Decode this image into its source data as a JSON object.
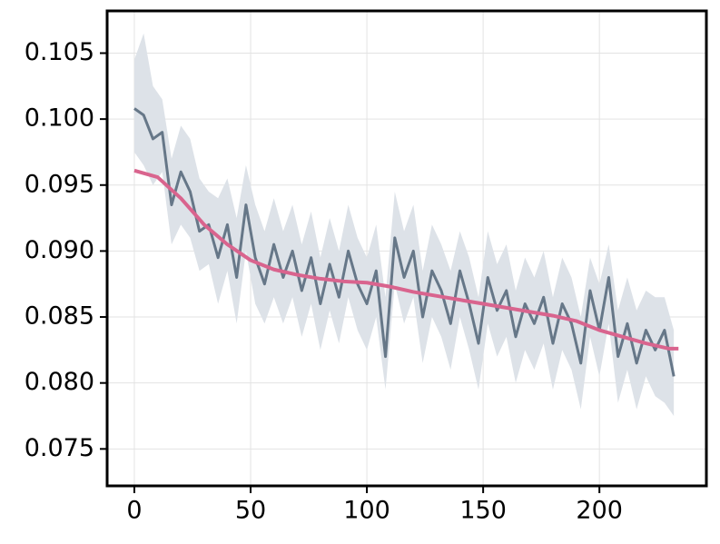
{
  "chart_data": {
    "type": "line",
    "xlim": [
      -11.7,
      246
    ],
    "ylim": [
      0.0722,
      0.1082
    ],
    "xticks": [
      0,
      50,
      100,
      150,
      200
    ],
    "yticks": [
      0.075,
      {
        "value": 0.08,
        "label": "0.080"
      },
      0.085,
      {
        "value": 0.09,
        "label": "0.090"
      },
      0.095,
      {
        "value": 0.1,
        "label": "0.100"
      },
      0.105
    ],
    "grid": true,
    "series": [
      {
        "color": "#667788",
        "band_color": "#dde2e8",
        "x": [
          0,
          4,
          8,
          12,
          16,
          20,
          24,
          28,
          32,
          36,
          40,
          44,
          48,
          52,
          56,
          60,
          64,
          68,
          72,
          76,
          80,
          84,
          88,
          92,
          96,
          100,
          104,
          108,
          112,
          116,
          120,
          124,
          128,
          132,
          136,
          140,
          144,
          148,
          152,
          156,
          160,
          164,
          168,
          172,
          176,
          180,
          184,
          188,
          192,
          196,
          200,
          204,
          208,
          212,
          216,
          220,
          224,
          228,
          232
        ],
        "values": [
          0.1008,
          0.1003,
          0.0985,
          0.099,
          0.0935,
          0.096,
          0.0945,
          0.0915,
          0.092,
          0.0895,
          0.092,
          0.088,
          0.0935,
          0.0895,
          0.0875,
          0.0905,
          0.088,
          0.09,
          0.087,
          0.0895,
          0.086,
          0.089,
          0.0865,
          0.09,
          0.0875,
          0.086,
          0.0885,
          0.082,
          0.091,
          0.088,
          0.09,
          0.085,
          0.0885,
          0.087,
          0.0845,
          0.0885,
          0.086,
          0.083,
          0.088,
          0.0855,
          0.087,
          0.0835,
          0.086,
          0.0845,
          0.0865,
          0.083,
          0.086,
          0.0845,
          0.0815,
          0.087,
          0.084,
          0.088,
          0.082,
          0.0845,
          0.0815,
          0.084,
          0.0825,
          0.084,
          0.0805
        ],
        "upper": [
          0.1045,
          0.1065,
          0.1025,
          0.1015,
          0.097,
          0.0995,
          0.0985,
          0.0955,
          0.0945,
          0.094,
          0.0955,
          0.0925,
          0.0965,
          0.0935,
          0.0915,
          0.094,
          0.0915,
          0.0935,
          0.0905,
          0.093,
          0.0895,
          0.0925,
          0.09,
          0.0935,
          0.091,
          0.0895,
          0.092,
          0.0865,
          0.0945,
          0.0915,
          0.0935,
          0.0885,
          0.092,
          0.0905,
          0.0885,
          0.0915,
          0.0895,
          0.0865,
          0.0915,
          0.089,
          0.0905,
          0.087,
          0.0895,
          0.088,
          0.09,
          0.0865,
          0.0895,
          0.088,
          0.085,
          0.0895,
          0.0875,
          0.0905,
          0.0855,
          0.088,
          0.0855,
          0.087,
          0.0865,
          0.0865,
          0.084
        ],
        "lower": [
          0.0975,
          0.0965,
          0.095,
          0.096,
          0.0905,
          0.092,
          0.091,
          0.0885,
          0.089,
          0.086,
          0.0885,
          0.0845,
          0.09,
          0.086,
          0.0845,
          0.0865,
          0.0845,
          0.0865,
          0.0835,
          0.086,
          0.0825,
          0.0855,
          0.083,
          0.0865,
          0.084,
          0.0825,
          0.085,
          0.0795,
          0.0875,
          0.0845,
          0.0865,
          0.0815,
          0.085,
          0.0835,
          0.081,
          0.085,
          0.0825,
          0.0795,
          0.0845,
          0.082,
          0.0835,
          0.08,
          0.0825,
          0.081,
          0.083,
          0.0795,
          0.0825,
          0.081,
          0.078,
          0.0835,
          0.0805,
          0.0845,
          0.0785,
          0.081,
          0.078,
          0.0805,
          0.079,
          0.0785,
          0.0775
        ]
      },
      {
        "color": "#d9648e",
        "x": [
          0,
          10,
          20,
          30,
          40,
          50,
          60,
          70,
          80,
          90,
          100,
          110,
          120,
          130,
          140,
          150,
          160,
          170,
          180,
          190,
          200,
          210,
          220,
          230,
          234
        ],
        "values": [
          0.0961,
          0.0956,
          0.094,
          0.092,
          0.0905,
          0.0893,
          0.0886,
          0.0882,
          0.0879,
          0.0877,
          0.0876,
          0.0873,
          0.0869,
          0.0866,
          0.0863,
          0.086,
          0.0857,
          0.0854,
          0.0851,
          0.0847,
          0.084,
          0.0835,
          0.083,
          0.0826,
          0.0826
        ]
      }
    ]
  }
}
